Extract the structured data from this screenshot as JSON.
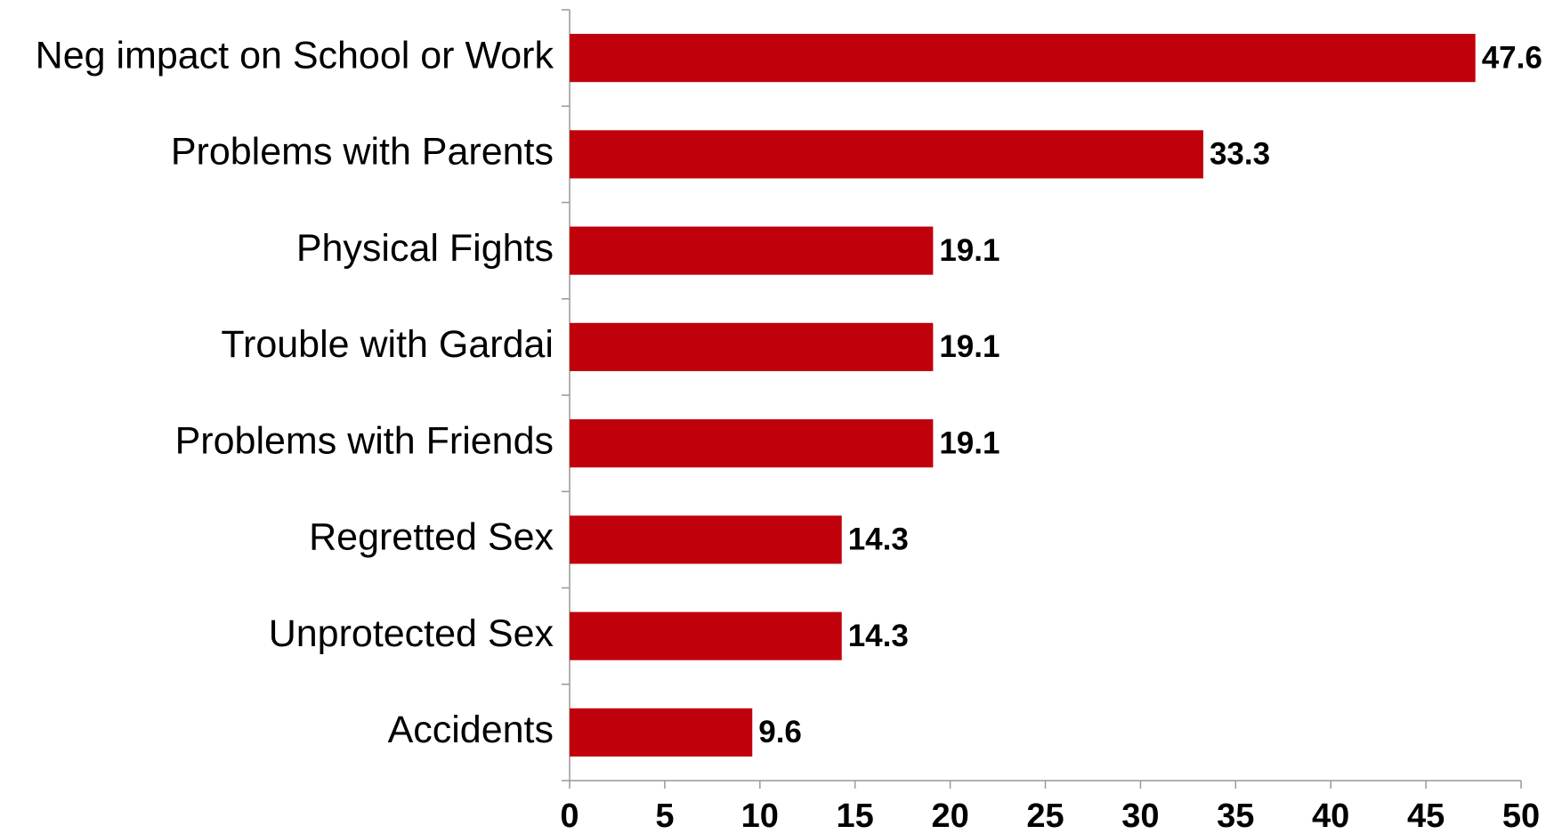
{
  "chart_data": {
    "type": "bar",
    "orientation": "horizontal",
    "categories": [
      "Neg impact on School or Work",
      "Problems with Parents",
      "Physical Fights",
      "Trouble with Gardai",
      "Problems with Friends",
      "Regretted Sex",
      "Unprotected Sex",
      "Accidents"
    ],
    "values": [
      47.6,
      33.3,
      19.1,
      19.1,
      19.1,
      14.3,
      14.3,
      9.6
    ],
    "color": "#c0000b",
    "xlim": [
      0,
      50
    ],
    "xticks": [
      0,
      5,
      10,
      15,
      20,
      25,
      30,
      35,
      40,
      45,
      50
    ],
    "grid": false
  }
}
